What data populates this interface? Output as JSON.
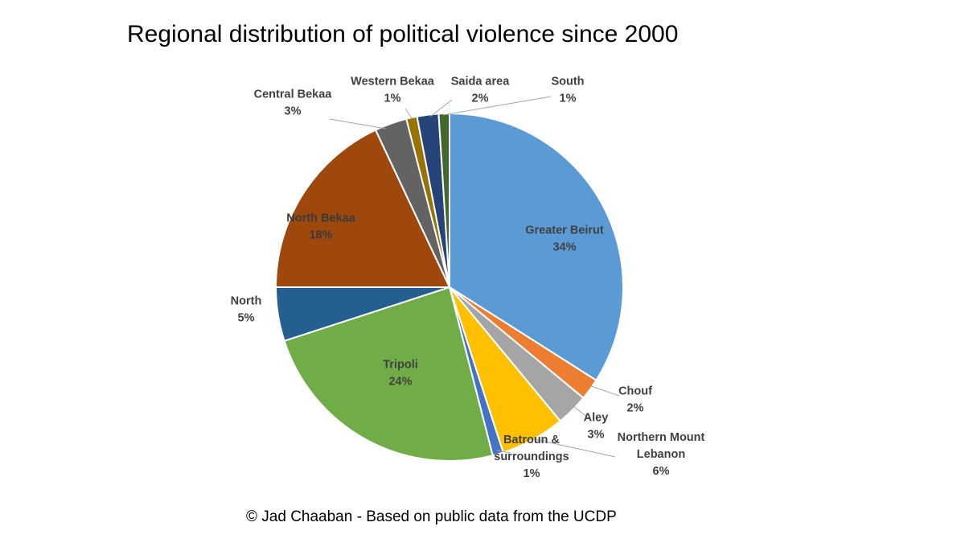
{
  "chart_data": {
    "type": "pie",
    "title": "Regional distribution  of political violence since 2000",
    "slices": [
      {
        "name": "Greater Beirut",
        "value": 34,
        "label": "34%",
        "color": "#5B9BD5"
      },
      {
        "name": "Chouf",
        "value": 2,
        "label": "2%",
        "color": "#ED7D31"
      },
      {
        "name": "Aley",
        "value": 3,
        "label": "3%",
        "color": "#A5A5A5"
      },
      {
        "name": "Northern Mount Lebanon",
        "value": 6,
        "label": "6%",
        "color": "#FFC000"
      },
      {
        "name": "Batroun & surroundings",
        "value": 1,
        "label": "1%",
        "color": "#4472C4"
      },
      {
        "name": "Tripoli",
        "value": 24,
        "label": "24%",
        "color": "#70AD47"
      },
      {
        "name": "North",
        "value": 5,
        "label": "5%",
        "color": "#255E91"
      },
      {
        "name": "North Bekaa",
        "value": 18,
        "label": "18%",
        "color": "#9E480E"
      },
      {
        "name": "Central Bekaa",
        "value": 3,
        "label": "3%",
        "color": "#636363"
      },
      {
        "name": "Western Bekaa",
        "value": 1,
        "label": "1%",
        "color": "#997300"
      },
      {
        "name": "Saida area",
        "value": 2,
        "label": "2%",
        "color": "#264478"
      },
      {
        "name": "South",
        "value": 1,
        "label": "1%",
        "color": "#43682B"
      }
    ]
  },
  "label_lines": {
    "Greater Beirut": [
      "Greater Beirut",
      "34%"
    ],
    "Chouf": [
      "Chouf",
      "2%"
    ],
    "Aley": [
      "Aley",
      "3%"
    ],
    "Northern Mount Lebanon": [
      "Northern Mount",
      "Lebanon",
      "6%"
    ],
    "Batroun & surroundings": [
      "Batroun &",
      "surroundings",
      "1%"
    ],
    "Tripoli": [
      "Tripoli",
      "24%"
    ],
    "North": [
      "North",
      "5%"
    ],
    "North Bekaa": [
      "North Bekaa",
      "18%"
    ],
    "Central Bekaa": [
      "Central Bekaa",
      "3%"
    ],
    "Western Bekaa": [
      "Western Bekaa",
      "1%"
    ],
    "Saida area": [
      "Saida area",
      "2%"
    ],
    "South": [
      "South",
      "1%"
    ]
  },
  "footnote": "© Jad Chaaban - Based on public data from the UCDP"
}
